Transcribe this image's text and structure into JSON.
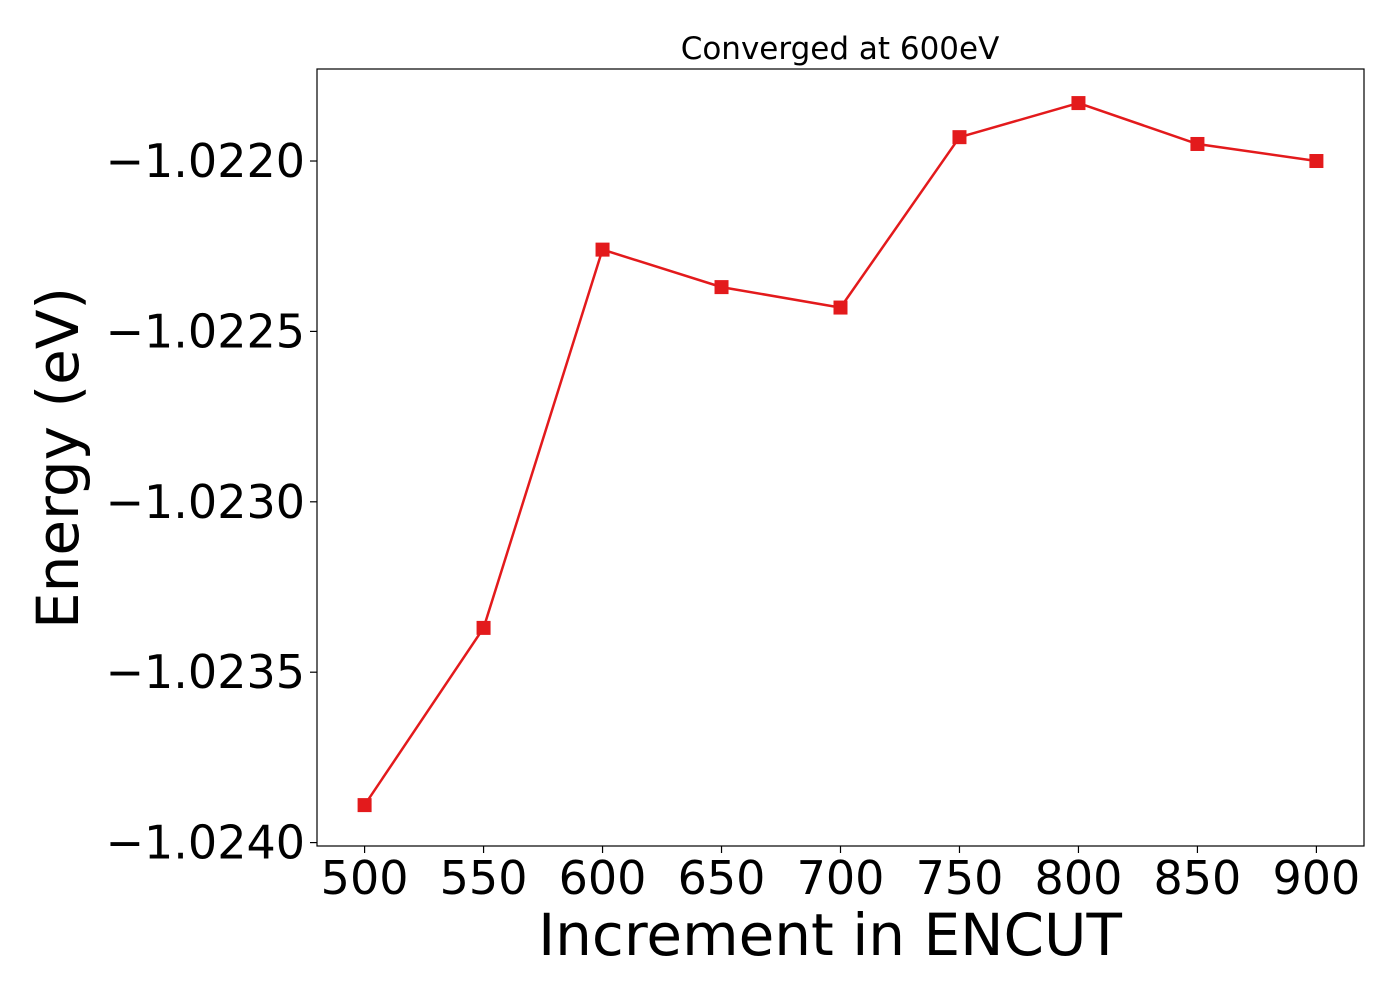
{
  "chart_data": {
    "type": "line",
    "title": "Converged at 600eV",
    "xlabel": "Increment in ENCUT",
    "ylabel": "Energy (eV)",
    "x": [
      500,
      550,
      600,
      650,
      700,
      750,
      800,
      850,
      900
    ],
    "x_ticks": [
      "500",
      "550",
      "600",
      "650",
      "700",
      "750",
      "800",
      "850",
      "900"
    ],
    "y_ticks": [
      {
        "value": -1.022,
        "label": "−1.0220"
      },
      {
        "value": -1.0225,
        "label": "−1.0225"
      },
      {
        "value": -1.023,
        "label": "−1.0230"
      },
      {
        "value": -1.0235,
        "label": "−1.0235"
      },
      {
        "value": -1.024,
        "label": "−1.0240"
      }
    ],
    "xlim": [
      480,
      920
    ],
    "ylim": [
      -1.02401,
      -1.02173
    ],
    "series": [
      {
        "color": "#e31a1c",
        "marker": "square",
        "values": [
          -1.02389,
          -1.02337,
          -1.02226,
          -1.02237,
          -1.02243,
          -1.02193,
          -1.02183,
          -1.02195,
          -1.022
        ]
      }
    ],
    "grid": false,
    "legend": "none"
  }
}
